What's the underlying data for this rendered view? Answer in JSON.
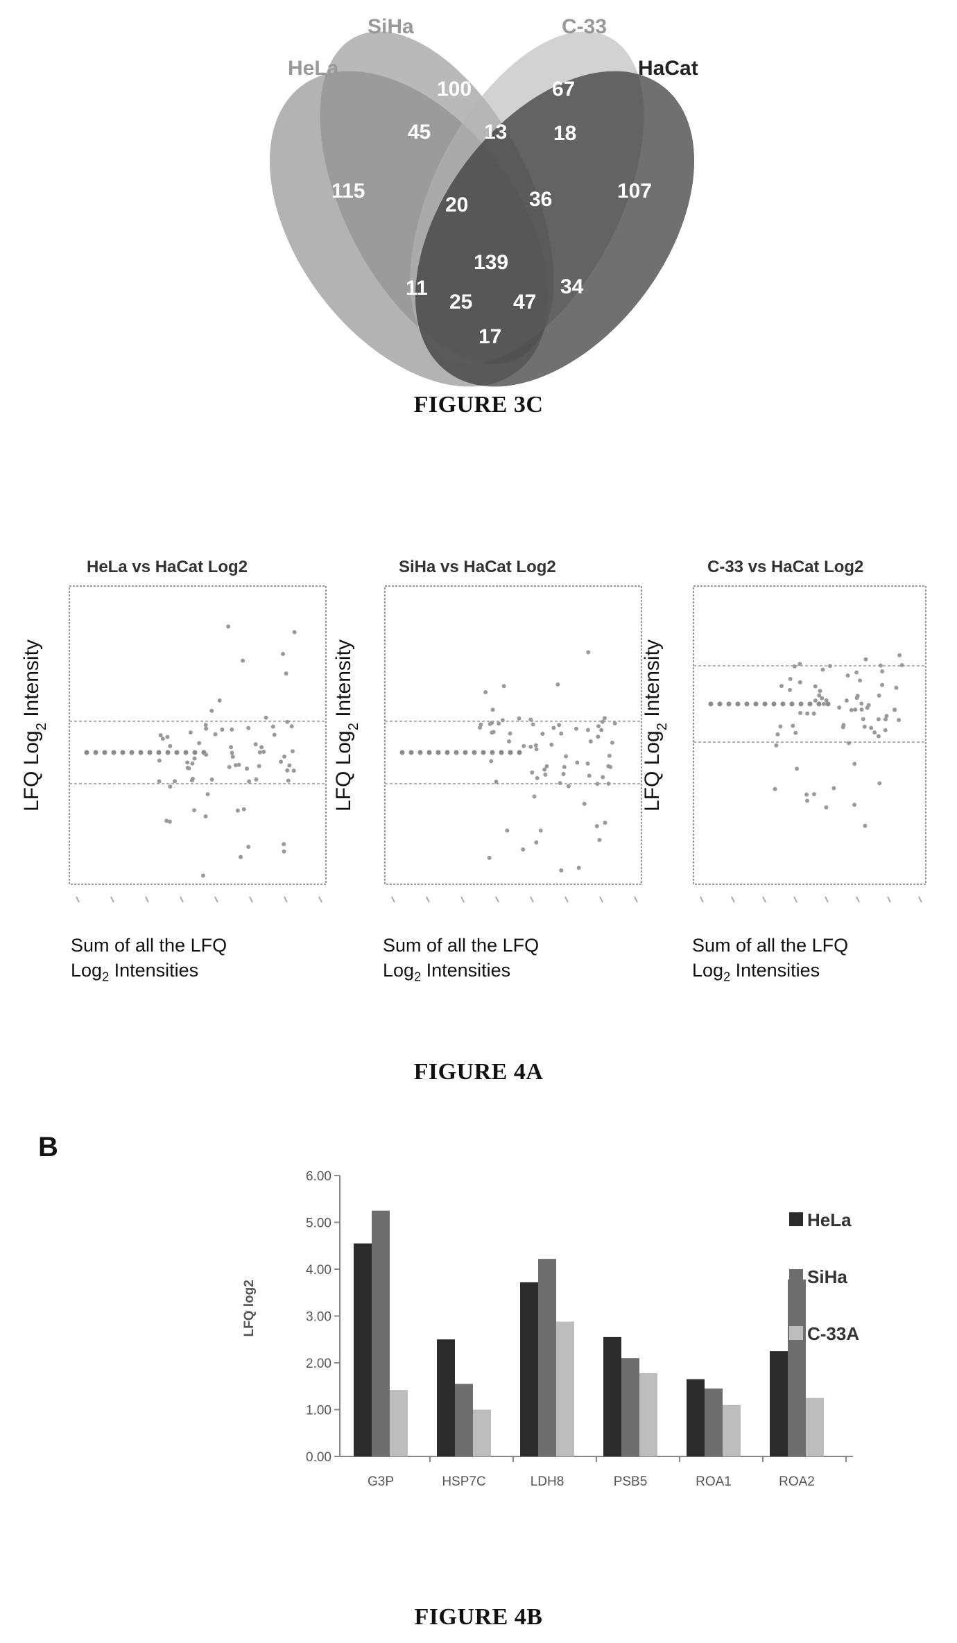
{
  "figure_3c": {
    "caption": "FIGURE 3C",
    "sets": [
      {
        "name": "HeLa",
        "color": "#9a9a9a"
      },
      {
        "name": "SiHa",
        "color": "#8a8a8a"
      },
      {
        "name": "C-33",
        "color": "#b4b4b4"
      },
      {
        "name": "HaCat",
        "color": "#333333"
      }
    ],
    "regions": [
      {
        "sets": "SiHa",
        "value": "100"
      },
      {
        "sets": "C-33",
        "value": "67"
      },
      {
        "sets": "HaCat",
        "value": "107"
      },
      {
        "sets": "HeLa",
        "value": "115"
      },
      {
        "sets": "HeLa∩SiHa",
        "value": "45"
      },
      {
        "sets": "SiHa∩C-33",
        "value": "13"
      },
      {
        "sets": "C-33∩HaCat",
        "value": "18"
      },
      {
        "sets": "HeLa∩SiHa∩C-33",
        "value": "20"
      },
      {
        "sets": "SiHa∩C-33∩HaCat",
        "value": "36"
      },
      {
        "sets": "HeLa∩SiHa∩C-33∩HaCat",
        "value": "139"
      },
      {
        "sets": "HeLa∩C-33",
        "value": "11"
      },
      {
        "sets": "SiHa∩HaCat",
        "value": "34"
      },
      {
        "sets": "HeLa∩C-33∩HaCat",
        "value": "25"
      },
      {
        "sets": "HeLa∩SiHa∩HaCat",
        "value": "47"
      },
      {
        "sets": "HeLa∩HaCat",
        "value": "17"
      }
    ]
  },
  "figure_4a": {
    "caption": "FIGURE 4A",
    "y_label_main": "LFQ Log",
    "y_label_sub": "2",
    "y_label_end": " Intensity",
    "x_label_line1": "Sum of all the LFQ",
    "x_label_log": "Log",
    "x_label_sub": "2",
    "x_label_end": " Intensities",
    "panels": [
      {
        "title": "HeLa vs HaCat Log2"
      },
      {
        "title": "SiHa vs HaCat Log2"
      },
      {
        "title": "C-33 vs HaCat Log2"
      }
    ]
  },
  "figure_4b": {
    "panel_letter": "B",
    "caption": "FIGURE 4B"
  },
  "chart_data": {
    "type": "bar",
    "title": "",
    "xlabel": "",
    "ylabel": "LFQ log2",
    "ylim": [
      0,
      6
    ],
    "yticks": [
      "0.00",
      "1.00",
      "2.00",
      "3.00",
      "4.00",
      "5.00",
      "6.00"
    ],
    "categories": [
      "G3P",
      "HSP7C",
      "LDH8",
      "PSB5",
      "ROA1",
      "ROA2"
    ],
    "series": [
      {
        "name": "HeLa",
        "color": "#2b2b2b",
        "values": [
          4.55,
          2.5,
          3.72,
          2.55,
          1.65,
          2.25
        ]
      },
      {
        "name": "SiHa",
        "color": "#6e6e6e",
        "values": [
          5.25,
          1.55,
          4.22,
          2.1,
          1.45,
          3.78
        ]
      },
      {
        "name": "C-33A",
        "color": "#bdbdbd",
        "values": [
          1.42,
          1.0,
          2.88,
          1.78,
          1.1,
          1.25
        ]
      }
    ],
    "legend_position": "right",
    "grid": false
  }
}
